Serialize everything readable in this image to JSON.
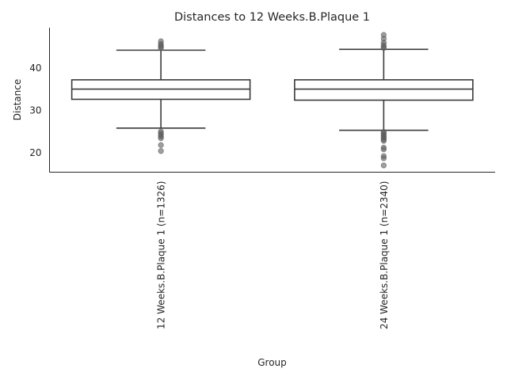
{
  "chart_data": {
    "type": "box",
    "title": "Distances to 12 Weeks.B.Plaque 1",
    "xlabel": "Group",
    "ylabel": "Distance",
    "ylim": [
      15.3,
      49.4
    ],
    "yticks": [
      20,
      30,
      40
    ],
    "grid": false,
    "legend": "none",
    "colors": {
      "box_fill": "#ffffff",
      "box_stroke": "#3a3a3a",
      "flier": "#5f5f5f",
      "axis": "#262626"
    },
    "categories": [
      "12 Weeks.B.Plaque 1 (n=1326)",
      "24 Weeks.B.Plaque 1 (n=2340)"
    ],
    "boxes": [
      {
        "q1": 32.5,
        "median": 34.9,
        "q3": 37.1,
        "whisker_low": 25.7,
        "whisker_high": 44.1,
        "fliers": [
          46.2,
          45.6,
          45.2,
          44.9,
          44.6,
          24.9,
          24.5,
          24.1,
          23.7,
          23.3,
          21.7,
          20.3
        ]
      },
      {
        "q1": 32.3,
        "median": 34.9,
        "q3": 37.1,
        "whisker_low": 25.2,
        "whisker_high": 44.3,
        "fliers": [
          47.7,
          46.8,
          45.9,
          45.3,
          44.9,
          44.6,
          24.8,
          24.5,
          24.2,
          23.9,
          23.6,
          23.3,
          23.0,
          22.7,
          21.1,
          20.7,
          19.1,
          18.6,
          16.9
        ]
      }
    ]
  }
}
